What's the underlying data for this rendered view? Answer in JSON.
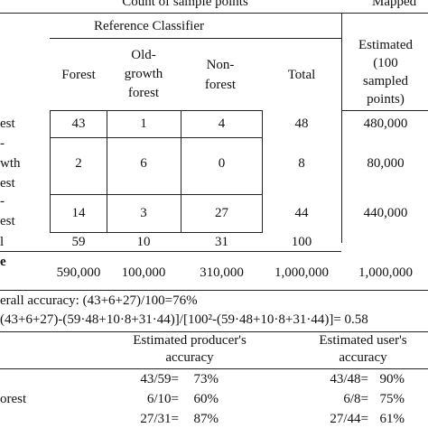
{
  "header": {
    "count_of_sample_points": "Count of sample points",
    "mapped": "Mapped",
    "reference_classifier": "Reference Classifier",
    "estimated": [
      "Estimated",
      "(100",
      "sampled",
      "points)"
    ]
  },
  "columns": {
    "forest": "Forest",
    "old_growth_forest": [
      "Old-",
      "growth",
      "forest"
    ],
    "non_forest": [
      "Non-",
      "forest"
    ],
    "total": "Total"
  },
  "row_labels": {
    "forest": "est",
    "old_growth": [
      "-",
      "wth",
      "est"
    ],
    "non_forest": [
      "-",
      "est"
    ],
    "total": "l",
    "area": "e"
  },
  "matrix": [
    {
      "forest": "43",
      "old_growth": "1",
      "non_forest": "4",
      "total": "48",
      "estimated": "480,000"
    },
    {
      "forest": "2",
      "old_growth": "6",
      "non_forest": "0",
      "total": "8",
      "estimated": "80,000"
    },
    {
      "forest": "14",
      "old_growth": "3",
      "non_forest": "27",
      "total": "44",
      "estimated": "440,000"
    }
  ],
  "totals": {
    "forest": "59",
    "old_growth": "10",
    "non_forest": "31",
    "total": "100"
  },
  "area": {
    "forest": "590,000",
    "old_growth": "100,000",
    "non_forest": "310,000",
    "total": "1,000,000",
    "mapped": "1,000,000"
  },
  "overall_accuracy": "erall accuracy: (43+6+27)/100=76%",
  "kappa": "(43+6+27)-(59·48+10·8+31·44)]/[100²-(59·48+10·8+31·44)]= 0.58",
  "accuracy_header": {
    "producers": [
      "Estimated producer's",
      "accuracy"
    ],
    "users": [
      "Estimated user's",
      "accuracy"
    ]
  },
  "accuracy_rows": [
    {
      "label": "",
      "producer_fraction": "43/59=",
      "producer_pct": "73%",
      "user_fraction": "43/48=",
      "user_pct": "90%"
    },
    {
      "label": "orest",
      "producer_fraction": "6/10=",
      "producer_pct": "60%",
      "user_fraction": "6/8=",
      "user_pct": "75%"
    },
    {
      "label": "",
      "producer_fraction": "27/31=",
      "producer_pct": "87%",
      "user_fraction": "27/44=",
      "user_pct": "61%"
    }
  ]
}
